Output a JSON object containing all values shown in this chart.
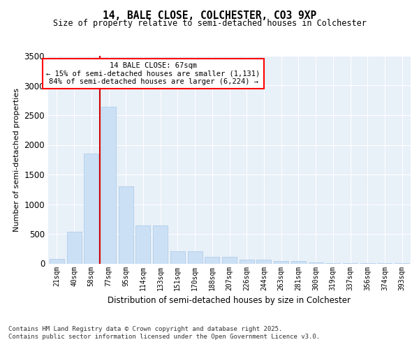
{
  "title": "14, BALE CLOSE, COLCHESTER, CO3 9XP",
  "subtitle": "Size of property relative to semi-detached houses in Colchester",
  "xlabel": "Distribution of semi-detached houses by size in Colchester",
  "ylabel": "Number of semi-detached properties",
  "footnote1": "Contains HM Land Registry data © Crown copyright and database right 2025.",
  "footnote2": "Contains public sector information licensed under the Open Government Licence v3.0.",
  "annotation_title": "14 BALE CLOSE: 67sqm",
  "annotation_line1": "← 15% of semi-detached houses are smaller (1,131)",
  "annotation_line2": "84% of semi-detached houses are larger (6,224) →",
  "property_size_idx": 2,
  "bar_color": "#cce0f5",
  "bar_edge_color": "#a8c8e8",
  "redline_color": "#cc0000",
  "bg_color": "#e8f0f8",
  "categories": [
    "21sqm",
    "40sqm",
    "58sqm",
    "77sqm",
    "95sqm",
    "114sqm",
    "133sqm",
    "151sqm",
    "170sqm",
    "188sqm",
    "207sqm",
    "226sqm",
    "244sqm",
    "263sqm",
    "281sqm",
    "300sqm",
    "319sqm",
    "337sqm",
    "356sqm",
    "374sqm",
    "393sqm"
  ],
  "values": [
    80,
    530,
    1850,
    2640,
    1300,
    640,
    640,
    210,
    210,
    110,
    110,
    60,
    60,
    40,
    40,
    20,
    10,
    8,
    4,
    2,
    2
  ],
  "ylim": [
    0,
    3500
  ],
  "yticks": [
    0,
    500,
    1000,
    1500,
    2000,
    2500,
    3000,
    3500
  ]
}
